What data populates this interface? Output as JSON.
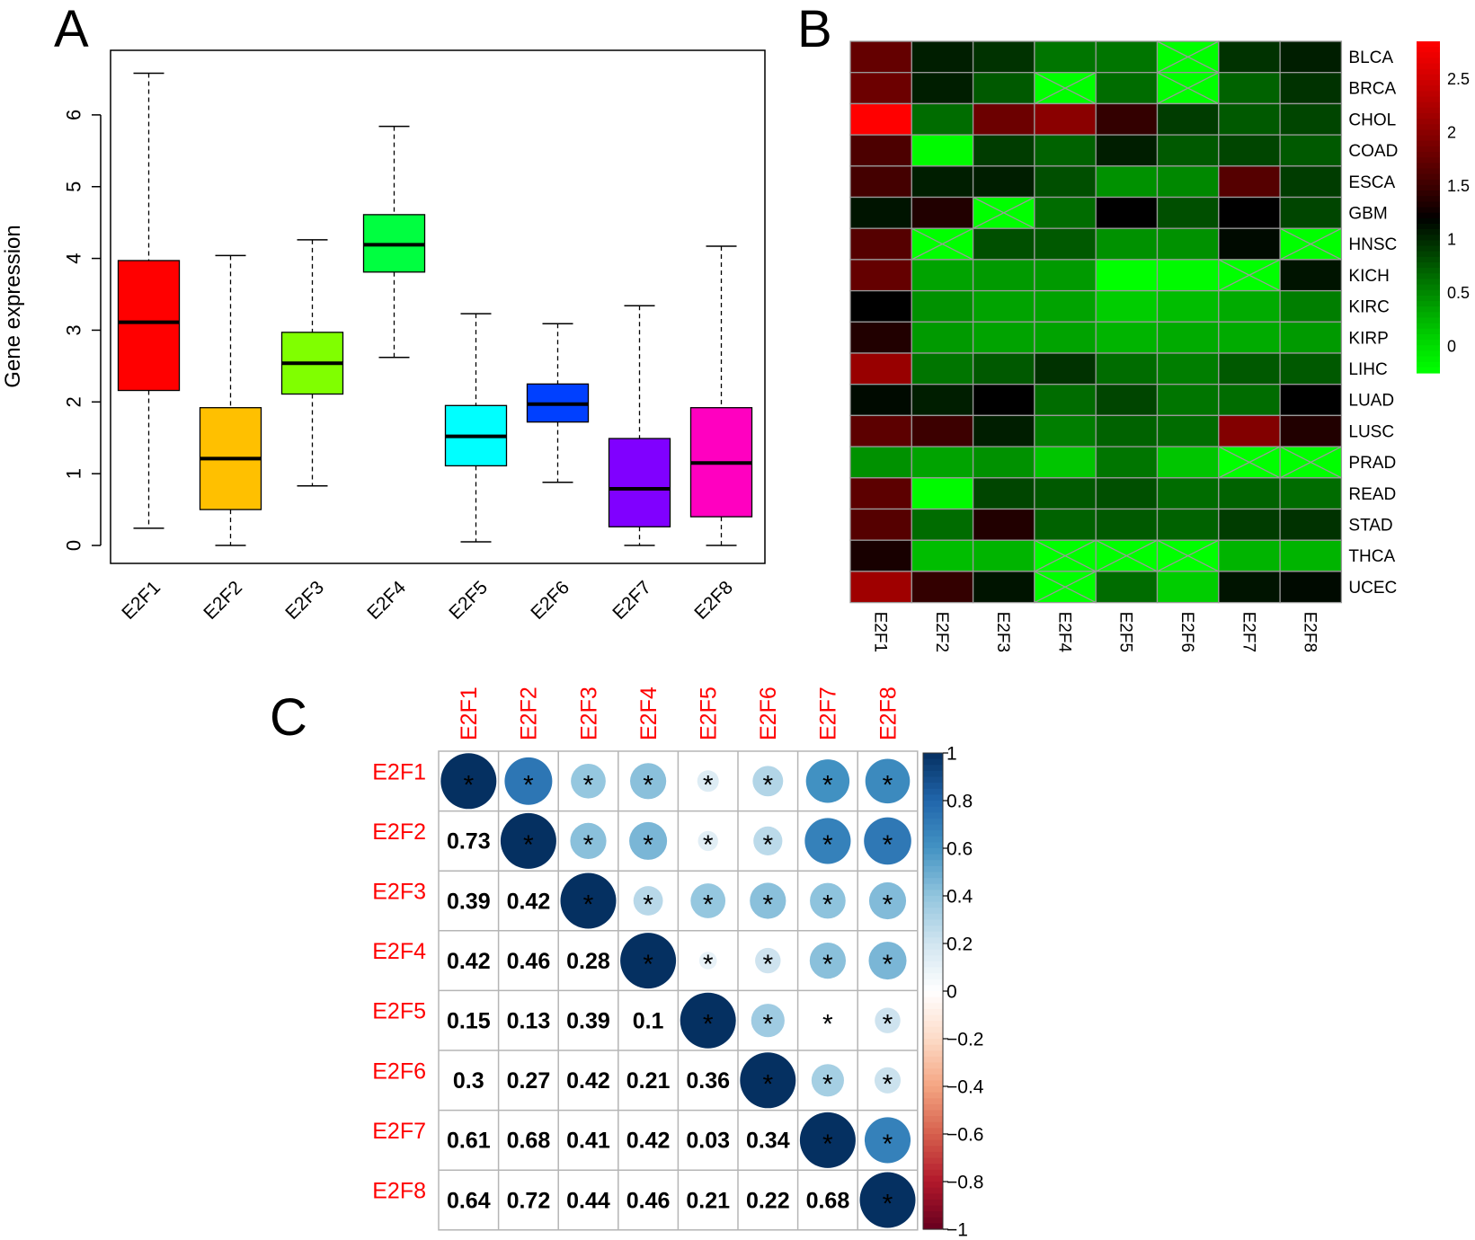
{
  "panels": {
    "a": "A",
    "b": "B",
    "c": "C"
  },
  "chart_data": [
    {
      "type": "box",
      "panel": "A",
      "title": "",
      "xlabel": "",
      "ylabel": "Gene expression",
      "ylim": [
        -0.25,
        6.9
      ],
      "yticks": [
        0,
        1,
        2,
        3,
        4,
        5,
        6
      ],
      "categories": [
        "E2F1",
        "E2F2",
        "E2F3",
        "E2F4",
        "E2F5",
        "E2F6",
        "E2F7",
        "E2F8"
      ],
      "colors": [
        "#ff0000",
        "#ffc000",
        "#80ff00",
        "#00ff40",
        "#00ffff",
        "#0040ff",
        "#8000ff",
        "#ff00c0"
      ],
      "boxes": [
        {
          "min": 0.24,
          "q1": 2.16,
          "median": 3.11,
          "q3": 3.97,
          "max": 6.58
        },
        {
          "min": 0.0,
          "q1": 0.5,
          "median": 1.21,
          "q3": 1.92,
          "max": 4.04
        },
        {
          "min": 0.83,
          "q1": 2.11,
          "median": 2.54,
          "q3": 2.97,
          "max": 4.26
        },
        {
          "min": 2.62,
          "q1": 3.81,
          "median": 4.19,
          "q3": 4.61,
          "max": 5.84
        },
        {
          "min": 0.05,
          "q1": 1.11,
          "median": 1.52,
          "q3": 1.95,
          "max": 3.23
        },
        {
          "min": 0.88,
          "q1": 1.72,
          "median": 1.97,
          "q3": 2.25,
          "max": 3.09
        },
        {
          "min": 0.0,
          "q1": 0.26,
          "median": 0.79,
          "q3": 1.49,
          "max": 3.34
        },
        {
          "min": 0.0,
          "q1": 0.4,
          "median": 1.15,
          "q3": 1.92,
          "max": 4.17
        }
      ]
    },
    {
      "type": "heatmap",
      "panel": "B",
      "title": "",
      "rows": [
        "BLCA",
        "BRCA",
        "CHOL",
        "COAD",
        "ESCA",
        "GBM",
        "HNSC",
        "KICH",
        "KIRC",
        "KIRP",
        "LIHC",
        "LUAD",
        "LUSC",
        "PRAD",
        "READ",
        "STAD",
        "THCA",
        "UCEC"
      ],
      "columns": [
        "E2F1",
        "E2F2",
        "E2F3",
        "E2F4",
        "E2F5",
        "E2F6",
        "E2F7",
        "E2F8"
      ],
      "values": [
        [
          1.75,
          1.05,
          0.95,
          0.6,
          0.6,
          null,
          0.95,
          1.05
        ],
        [
          1.8,
          1.05,
          0.75,
          null,
          0.65,
          null,
          0.7,
          0.95
        ],
        [
          2.85,
          0.65,
          1.8,
          2.0,
          1.45,
          0.9,
          0.75,
          0.85
        ],
        [
          1.6,
          -0.2,
          0.9,
          0.7,
          1.05,
          0.75,
          0.85,
          0.75
        ],
        [
          1.55,
          1.05,
          1.05,
          0.8,
          0.45,
          0.5,
          1.65,
          0.9
        ],
        [
          1.1,
          1.35,
          null,
          0.65,
          1.2,
          0.8,
          1.2,
          0.85
        ],
        [
          1.65,
          null,
          0.8,
          0.75,
          0.45,
          0.45,
          1.15,
          null
        ],
        [
          1.75,
          0.35,
          0.4,
          0.4,
          -0.25,
          -0.2,
          null,
          1.1
        ],
        [
          1.2,
          0.45,
          0.35,
          0.35,
          0.1,
          0.2,
          0.3,
          0.55
        ],
        [
          1.35,
          0.4,
          0.35,
          0.35,
          0.25,
          0.3,
          0.3,
          0.4
        ],
        [
          2.1,
          0.6,
          0.75,
          0.95,
          0.65,
          0.55,
          0.75,
          0.75
        ],
        [
          1.15,
          1.05,
          1.2,
          0.65,
          0.85,
          0.6,
          0.65,
          1.2
        ],
        [
          1.7,
          1.5,
          1.05,
          0.55,
          0.7,
          0.65,
          1.95,
          1.35
        ],
        [
          0.45,
          0.35,
          0.45,
          0.15,
          0.6,
          0.15,
          null,
          null
        ],
        [
          1.7,
          -0.2,
          0.85,
          0.75,
          0.8,
          0.65,
          0.7,
          0.65
        ],
        [
          1.65,
          0.65,
          1.35,
          0.7,
          0.75,
          0.7,
          0.9,
          0.95
        ],
        [
          1.3,
          0.2,
          0.25,
          null,
          null,
          null,
          0.25,
          0.25
        ],
        [
          2.15,
          1.45,
          1.1,
          null,
          0.65,
          0.1,
          1.1,
          1.15
        ]
      ],
      "color_range": [
        -0.25,
        2.85
      ],
      "colorbar_ticks": [
        2.5,
        2,
        1.5,
        1,
        0.5,
        0
      ],
      "colorbar_colors": {
        "low": "#00ff00",
        "mid": "#000000",
        "high": "#ff0000"
      }
    },
    {
      "type": "heatmap",
      "panel": "C",
      "subtype": "correlation",
      "title": "",
      "labels": [
        "E2F1",
        "E2F2",
        "E2F3",
        "E2F4",
        "E2F5",
        "E2F6",
        "E2F7",
        "E2F8"
      ],
      "lower": [
        [],
        [
          "0.73"
        ],
        [
          "0.39",
          "0.42"
        ],
        [
          "0.42",
          "0.46",
          "0.28"
        ],
        [
          "0.15",
          "0.13",
          "0.39",
          "0.1"
        ],
        [
          "0.3",
          "0.27",
          "0.42",
          "0.21",
          "0.36"
        ],
        [
          "0.61",
          "0.68",
          "0.41",
          "0.42",
          "0.03",
          "0.34"
        ],
        [
          "0.64",
          "0.72",
          "0.44",
          "0.46",
          "0.21",
          "0.22",
          "0.68"
        ]
      ],
      "significance_mark": "*",
      "colorbar_ticks": [
        "1",
        "0.8",
        "0.6",
        "0.4",
        "0.2",
        "0",
        "−0.2",
        "−0.4",
        "−0.6",
        "−0.8",
        "−1"
      ],
      "colorbar_range": [
        -1,
        1
      ],
      "colorbar_colors": [
        "#67001f",
        "#b2182b",
        "#d6604d",
        "#f4a582",
        "#fddbc7",
        "#ffffff",
        "#d1e5f0",
        "#92c5de",
        "#4393c3",
        "#2166ac",
        "#053061"
      ],
      "label_color": "#ff0000"
    }
  ]
}
